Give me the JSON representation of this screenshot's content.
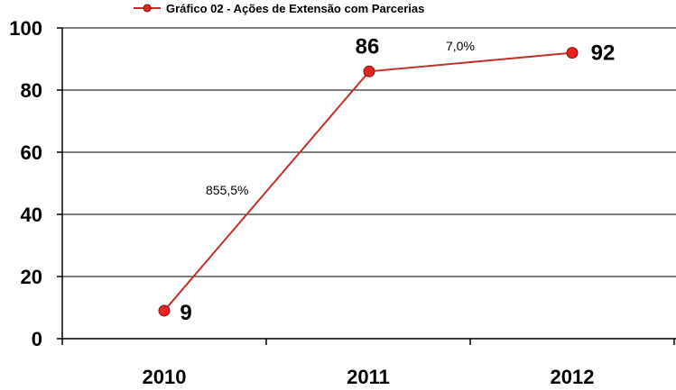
{
  "chart_data": {
    "type": "line",
    "legend": "Gráfico 02 - Ações de Extensão com Parcerias",
    "legend_position": "top-center",
    "categories": [
      "2010",
      "2011",
      "2012"
    ],
    "series": [
      {
        "name": "Gráfico 02 - Ações de Extensão com Parcerias",
        "values": [
          9,
          86,
          92
        ]
      }
    ],
    "data_labels": [
      "9",
      "86",
      "92"
    ],
    "annotations": [
      "855,5%",
      "7,0%"
    ],
    "ylim": [
      0,
      100
    ],
    "yticks": [
      "0",
      "20",
      "40",
      "60",
      "80",
      "100"
    ],
    "grid": "horizontal",
    "line_color": "#c0302a",
    "marker_color": "#e8231d"
  }
}
